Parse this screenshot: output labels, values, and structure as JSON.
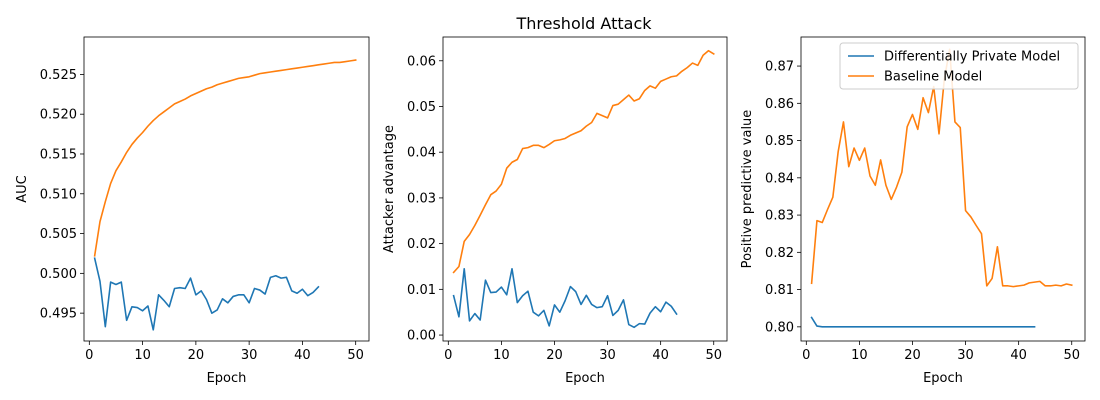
{
  "figure": {
    "title": "Threshold Attack"
  },
  "colors": {
    "series0": "#1f77b4",
    "series1": "#ff7f0e"
  },
  "chart_data": [
    {
      "type": "line",
      "title": "",
      "xlabel": "Epoch",
      "ylabel": "AUC",
      "xlim": [
        -1,
        52.5
      ],
      "ylim": [
        0.4915,
        0.5297
      ],
      "xticks": [
        0,
        10,
        20,
        30,
        40,
        50
      ],
      "yticks": [
        0.495,
        0.5,
        0.505,
        0.51,
        0.515,
        0.52,
        0.525
      ],
      "ytick_labels": [
        "0.495",
        "0.500",
        "0.505",
        "0.510",
        "0.515",
        "0.520",
        "0.525"
      ],
      "series": [
        {
          "name": "Differentially Private Model",
          "x": [
            1,
            2,
            3,
            4,
            5,
            6,
            7,
            8,
            9,
            10,
            11,
            12,
            13,
            14,
            15,
            16,
            17,
            18,
            19,
            20,
            21,
            22,
            23,
            24,
            25,
            26,
            27,
            28,
            29,
            30,
            31,
            32,
            33,
            34,
            35,
            36,
            37,
            38,
            39,
            40,
            41,
            42,
            43
          ],
          "values": [
            0.5019,
            0.499,
            0.4933,
            0.4989,
            0.4986,
            0.4989,
            0.4941,
            0.4958,
            0.4957,
            0.4953,
            0.4959,
            0.4929,
            0.4973,
            0.4966,
            0.4958,
            0.4981,
            0.4982,
            0.4981,
            0.4994,
            0.4973,
            0.4978,
            0.4967,
            0.495,
            0.4954,
            0.4968,
            0.4963,
            0.4971,
            0.4973,
            0.4973,
            0.4963,
            0.4981,
            0.4979,
            0.4974,
            0.4995,
            0.4997,
            0.4994,
            0.4995,
            0.4978,
            0.4975,
            0.498,
            0.4972,
            0.4976,
            0.4983
          ]
        },
        {
          "name": "Baseline Model",
          "x": [
            1,
            2,
            3,
            4,
            5,
            6,
            7,
            8,
            9,
            10,
            11,
            12,
            13,
            14,
            15,
            16,
            17,
            18,
            19,
            20,
            21,
            22,
            23,
            24,
            25,
            26,
            27,
            28,
            29,
            30,
            31,
            32,
            33,
            34,
            35,
            36,
            37,
            38,
            39,
            40,
            41,
            42,
            43,
            44,
            45,
            46,
            47,
            48,
            49,
            50
          ],
          "values": [
            0.5022,
            0.5065,
            0.509,
            0.5113,
            0.5129,
            0.514,
            0.5152,
            0.5162,
            0.517,
            0.5177,
            0.5185,
            0.5192,
            0.5198,
            0.5203,
            0.5208,
            0.5213,
            0.5216,
            0.5219,
            0.5223,
            0.5226,
            0.5229,
            0.5232,
            0.5234,
            0.5237,
            0.5239,
            0.5241,
            0.5243,
            0.5245,
            0.5246,
            0.5247,
            0.5249,
            0.5251,
            0.5252,
            0.5253,
            0.5254,
            0.5255,
            0.5256,
            0.5257,
            0.5258,
            0.5259,
            0.526,
            0.5261,
            0.5262,
            0.5263,
            0.5264,
            0.5265,
            0.5265,
            0.5266,
            0.5267,
            0.5268
          ]
        }
      ]
    },
    {
      "type": "line",
      "title": "Threshold Attack",
      "xlabel": "Epoch",
      "ylabel": "Attacker advantage",
      "xlim": [
        -1,
        52.5
      ],
      "ylim": [
        -0.0013,
        0.0652
      ],
      "xticks": [
        0,
        10,
        20,
        30,
        40,
        50
      ],
      "yticks": [
        0.0,
        0.01,
        0.02,
        0.03,
        0.04,
        0.05,
        0.06
      ],
      "ytick_labels": [
        "0.00",
        "0.01",
        "0.02",
        "0.03",
        "0.04",
        "0.05",
        "0.06"
      ],
      "series": [
        {
          "name": "Differentially Private Model",
          "x": [
            1,
            2,
            3,
            4,
            5,
            6,
            7,
            8,
            9,
            10,
            11,
            12,
            13,
            14,
            15,
            16,
            17,
            18,
            19,
            20,
            21,
            22,
            23,
            24,
            25,
            26,
            27,
            28,
            29,
            30,
            31,
            32,
            33,
            34,
            35,
            36,
            37,
            38,
            39,
            40,
            41,
            42,
            43
          ],
          "values": [
            0.0086,
            0.004,
            0.0145,
            0.0031,
            0.0047,
            0.0033,
            0.012,
            0.0093,
            0.0094,
            0.0105,
            0.0088,
            0.0145,
            0.0071,
            0.0086,
            0.0096,
            0.005,
            0.0042,
            0.0054,
            0.002,
            0.0066,
            0.005,
            0.0075,
            0.0106,
            0.0095,
            0.0067,
            0.0087,
            0.0067,
            0.006,
            0.0062,
            0.0086,
            0.0043,
            0.0054,
            0.0077,
            0.0023,
            0.0017,
            0.0025,
            0.0024,
            0.0048,
            0.0062,
            0.0051,
            0.0072,
            0.0063,
            0.0046
          ]
        },
        {
          "name": "Baseline Model",
          "x": [
            1,
            2,
            3,
            4,
            5,
            6,
            7,
            8,
            9,
            10,
            11,
            12,
            13,
            14,
            15,
            16,
            17,
            18,
            19,
            20,
            21,
            22,
            23,
            24,
            25,
            26,
            27,
            28,
            29,
            30,
            31,
            32,
            33,
            34,
            35,
            36,
            37,
            38,
            39,
            40,
            41,
            42,
            43,
            44,
            45,
            46,
            47,
            48,
            49,
            50
          ],
          "values": [
            0.0137,
            0.015,
            0.0205,
            0.022,
            0.024,
            0.0262,
            0.0285,
            0.0307,
            0.0315,
            0.033,
            0.0365,
            0.0378,
            0.0384,
            0.0408,
            0.041,
            0.0415,
            0.0415,
            0.041,
            0.0417,
            0.0425,
            0.0427,
            0.043,
            0.0437,
            0.0442,
            0.0447,
            0.0457,
            0.0465,
            0.0485,
            0.048,
            0.0475,
            0.0502,
            0.0505,
            0.0515,
            0.0525,
            0.0512,
            0.0517,
            0.0535,
            0.0545,
            0.054,
            0.0555,
            0.056,
            0.0565,
            0.0567,
            0.0577,
            0.0585,
            0.0595,
            0.059,
            0.0612,
            0.0622,
            0.0615
          ]
        }
      ]
    },
    {
      "type": "line",
      "title": "",
      "xlabel": "Epoch",
      "ylabel": "Positive predictive value",
      "xlim": [
        -1,
        52.5
      ],
      "ylim": [
        0.7962,
        0.8778
      ],
      "xticks": [
        0,
        10,
        20,
        30,
        40,
        50
      ],
      "yticks": [
        0.8,
        0.81,
        0.82,
        0.83,
        0.84,
        0.85,
        0.86,
        0.87
      ],
      "ytick_labels": [
        "0.80",
        "0.81",
        "0.82",
        "0.83",
        "0.84",
        "0.85",
        "0.86",
        "0.87"
      ],
      "legend": {
        "position": "top-right"
      },
      "series": [
        {
          "name": "Differentially Private Model",
          "x": [
            1,
            2,
            3,
            4,
            5,
            6,
            7,
            8,
            9,
            10,
            11,
            12,
            13,
            14,
            15,
            16,
            17,
            18,
            19,
            20,
            21,
            22,
            23,
            24,
            25,
            26,
            27,
            28,
            29,
            30,
            31,
            32,
            33,
            34,
            35,
            36,
            37,
            38,
            39,
            40,
            41,
            42,
            43
          ],
          "values": [
            0.8025,
            0.8002,
            0.8,
            0.8,
            0.8,
            0.8,
            0.8,
            0.8,
            0.8,
            0.8,
            0.8,
            0.8,
            0.8,
            0.8,
            0.8,
            0.8,
            0.8,
            0.8,
            0.8,
            0.8,
            0.8,
            0.8,
            0.8,
            0.8,
            0.8,
            0.8,
            0.8,
            0.8,
            0.8,
            0.8,
            0.8,
            0.8,
            0.8,
            0.8,
            0.8,
            0.8,
            0.8,
            0.8,
            0.8,
            0.8,
            0.8,
            0.8,
            0.8
          ]
        },
        {
          "name": "Baseline Model",
          "x": [
            1,
            2,
            3,
            4,
            5,
            6,
            7,
            8,
            9,
            10,
            11,
            12,
            13,
            14,
            15,
            16,
            17,
            18,
            19,
            20,
            21,
            22,
            23,
            24,
            25,
            26,
            27,
            28,
            29,
            30,
            31,
            32,
            33,
            34,
            35,
            36,
            37,
            38,
            39,
            40,
            41,
            42,
            43,
            44,
            45,
            46,
            47,
            48,
            49,
            50
          ],
          "values": [
            0.8117,
            0.8285,
            0.828,
            0.8315,
            0.8348,
            0.847,
            0.855,
            0.843,
            0.848,
            0.8447,
            0.848,
            0.8405,
            0.838,
            0.8448,
            0.838,
            0.8342,
            0.8375,
            0.8415,
            0.8537,
            0.857,
            0.853,
            0.8615,
            0.8575,
            0.8645,
            0.8518,
            0.8665,
            0.8745,
            0.855,
            0.8535,
            0.8312,
            0.8295,
            0.8272,
            0.825,
            0.811,
            0.813,
            0.8215,
            0.811,
            0.811,
            0.8108,
            0.811,
            0.8112,
            0.8118,
            0.812,
            0.8122,
            0.811,
            0.811,
            0.8112,
            0.811,
            0.8115,
            0.8112
          ]
        }
      ]
    }
  ]
}
